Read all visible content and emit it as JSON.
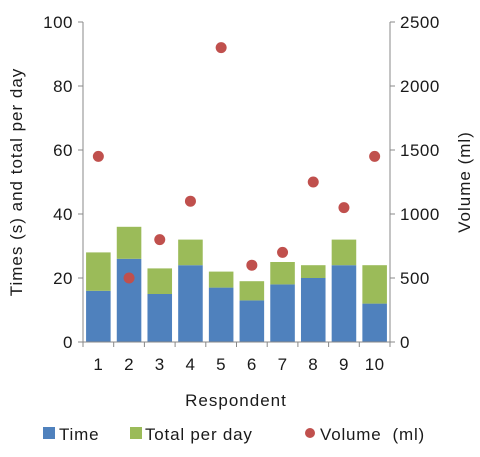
{
  "chart_data": {
    "type": "bar",
    "stacked": true,
    "categories": [
      "1",
      "2",
      "3",
      "4",
      "5",
      "6",
      "7",
      "8",
      "9",
      "10"
    ],
    "series": [
      {
        "name": "Time",
        "type": "bar",
        "axis": "left",
        "color": "#4f81bd",
        "values": [
          16,
          26,
          15,
          24,
          17,
          13,
          18,
          20,
          24,
          12
        ]
      },
      {
        "name": "Total per day",
        "type": "bar",
        "axis": "left",
        "color": "#9bbb59",
        "values": [
          12,
          10,
          8,
          8,
          5,
          6,
          7,
          4,
          8,
          12
        ]
      },
      {
        "name": "Volume  (ml)",
        "type": "scatter",
        "axis": "right",
        "color": "#c0504d",
        "values": [
          1450,
          500,
          800,
          1100,
          2300,
          600,
          700,
          1250,
          1050,
          1450
        ]
      }
    ],
    "xlabel": "Respondent",
    "ylabel": "Times (s) and total per day",
    "y2label": "Volume  (ml)",
    "ylim": [
      0,
      100
    ],
    "y2lim": [
      0,
      2500
    ],
    "yticks": [
      "0",
      "20",
      "40",
      "60",
      "80",
      "100"
    ],
    "y2ticks": [
      "0",
      "500",
      "1000",
      "1500",
      "2000",
      "2500"
    ],
    "grid": false,
    "legend_position": "bottom"
  }
}
